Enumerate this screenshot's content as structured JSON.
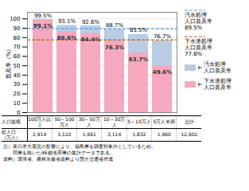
{
  "chart_data": {
    "type": "bar",
    "categories": [
      "100万人以上",
      "50～100万人",
      "30～50万人",
      "10～30万人",
      "5～10万人",
      "5万人未満"
    ],
    "series": [
      {
        "name": "汚水処理\n人口普及率",
        "color": "#B8CCE4",
        "values": [
          99.5,
          93.1,
          92.6,
          88.7,
          83.5,
          76.7
        ],
        "value_labels": [
          "99.5%",
          "93.1%",
          "92.6%",
          "88.7%",
          "83.5%",
          "76.7%"
        ]
      },
      {
        "name": "下水道処理\n人口普及率",
        "color": "#F5A8BE",
        "values": [
          99.1,
          86.6,
          84.4,
          76.3,
          63.7,
          49.6
        ],
        "value_labels": [
          "99.1%",
          "86.6%",
          "84.4%",
          "76.3%",
          "63.7%",
          "49.6%"
        ]
      }
    ],
    "y_label": "普及率（%）",
    "ylim": [
      0,
      107
    ],
    "yticks": [
      0,
      10,
      20,
      30,
      40,
      50,
      60,
      70,
      80,
      90,
      100
    ],
    "grid": true,
    "data_labels": true,
    "tick_labels": "y",
    "reference_lines": [
      {
        "name": "汚水処理\n人口普及率\n89.5%",
        "value": 89.5,
        "color": "#5B9BD5",
        "line_style": "dashed"
      },
      {
        "name": "下水道処理\n人口普及率\n77.6%",
        "value": 77.6,
        "color": "#C55A11",
        "line_style": "dashed"
      }
    ],
    "table": [
      [
        "人口規模",
        "100万人以上",
        "50～100万人",
        "30～50万人",
        "10～30万人",
        "5～10万人",
        "5万人未満",
        "合計"
      ],
      [
        "総人口\n（万人）",
        "2,914",
        "1,122",
        "1,661",
        "3,114",
        "1,832",
        "1,960",
        "12,602"
      ]
    ],
    "notes": [
      "注）東日本大震災の影響により、福島県を調査対象外としているため、",
      "　　同県を除いた46都道府県の集計データである。",
      "資料）環境省、農林水産省資料より国土交通省作成"
    ]
  }
}
